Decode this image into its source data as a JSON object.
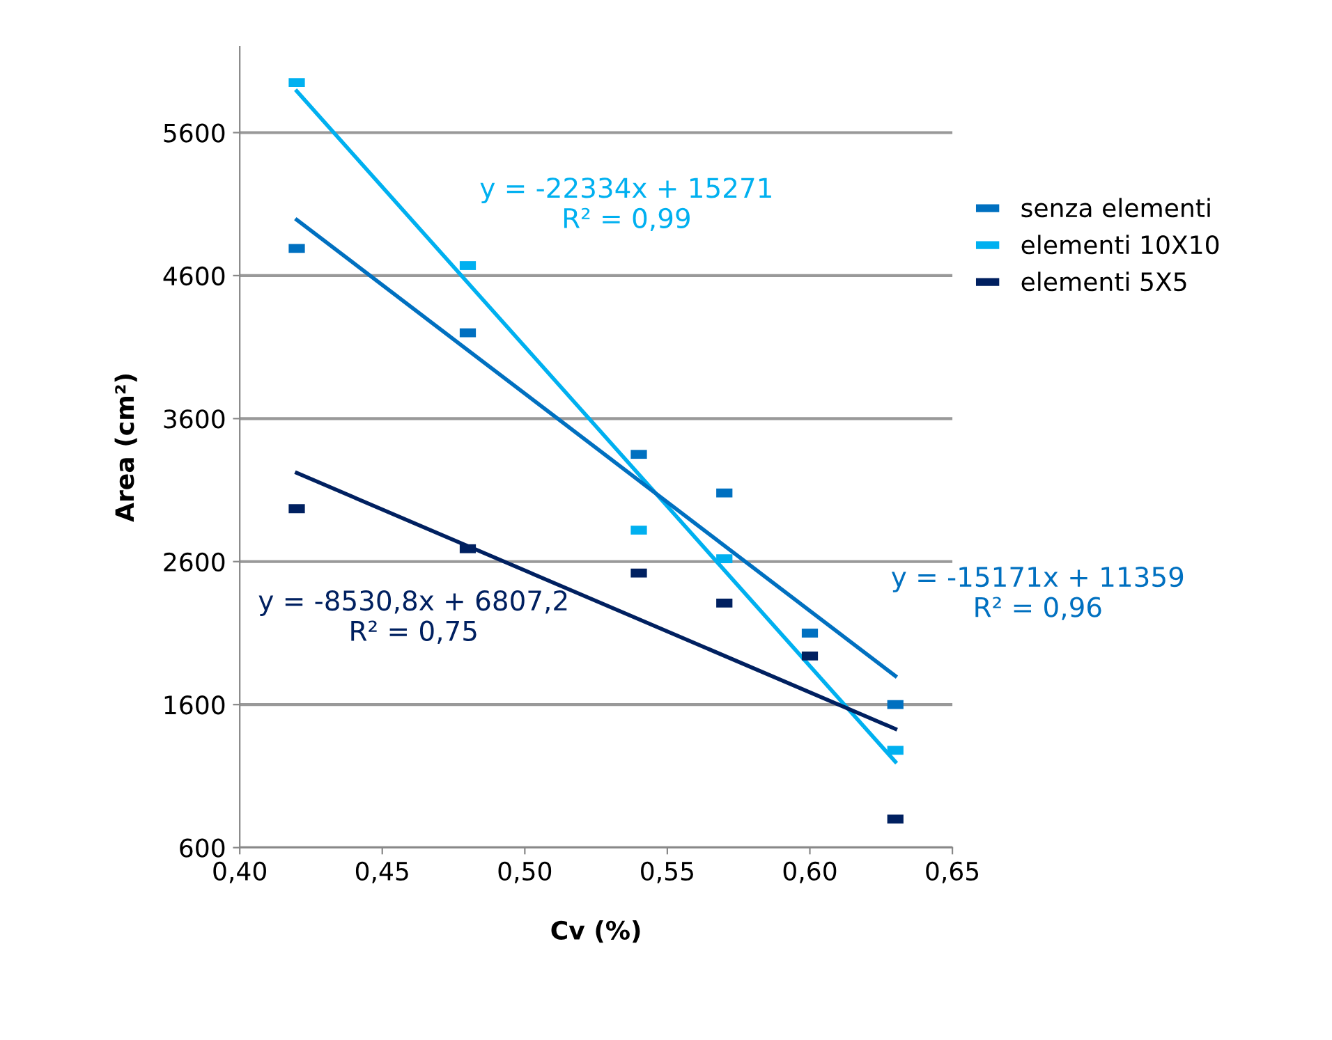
{
  "chart_data": {
    "type": "scatter",
    "xlabel": "Cv (%)",
    "ylabel": "Area (cm²)",
    "xlim": [
      0.4,
      0.65
    ],
    "ylim": [
      600,
      6200
    ],
    "xticks": [
      {
        "value": 0.4,
        "label": "0,40"
      },
      {
        "value": 0.45,
        "label": "0,45"
      },
      {
        "value": 0.5,
        "label": "0,50"
      },
      {
        "value": 0.55,
        "label": "0,55"
      },
      {
        "value": 0.6,
        "label": "0,60"
      },
      {
        "value": 0.65,
        "label": "0,65"
      }
    ],
    "yticks": [
      600,
      1600,
      2600,
      3600,
      4600,
      5600
    ],
    "grid": "y",
    "legend": "right",
    "series": [
      {
        "name": "senza elementi",
        "color": "#0070c0",
        "x": [
          0.42,
          0.48,
          0.54,
          0.57,
          0.6,
          0.63
        ],
        "values": [
          4790,
          4200,
          3350,
          3080,
          2100,
          1600
        ]
      },
      {
        "name": "elementi 10X10",
        "color": "#00b0f0",
        "x": [
          0.42,
          0.48,
          0.54,
          0.57,
          0.6,
          0.63
        ],
        "values": [
          5950,
          4670,
          2820,
          2620,
          null,
          1280
        ]
      },
      {
        "name": "elementi 5X5",
        "color": "#002060",
        "x": [
          0.42,
          0.48,
          0.54,
          0.57,
          0.6,
          0.63
        ],
        "values": [
          2970,
          2690,
          2520,
          2310,
          1940,
          800
        ]
      },
      {
        "type": "line",
        "color": "#00b0f0",
        "x": [
          0.42,
          0.63
        ],
        "values": [
          5890,
          1200
        ]
      },
      {
        "type": "line",
        "color": "#0070c0",
        "x": [
          0.42,
          0.63
        ],
        "values": [
          4990,
          1800
        ]
      },
      {
        "type": "line",
        "color": "#002060",
        "x": [
          0.42,
          0.63
        ],
        "values": [
          3220,
          1430
        ]
      }
    ],
    "annotations": [
      "y = -22334x + 15271\nR² = 0,99",
      "y = -15171x + 11359\nR² = 0,96",
      "y = -8530,8x + 6807,2\nR² = 0,75"
    ]
  }
}
